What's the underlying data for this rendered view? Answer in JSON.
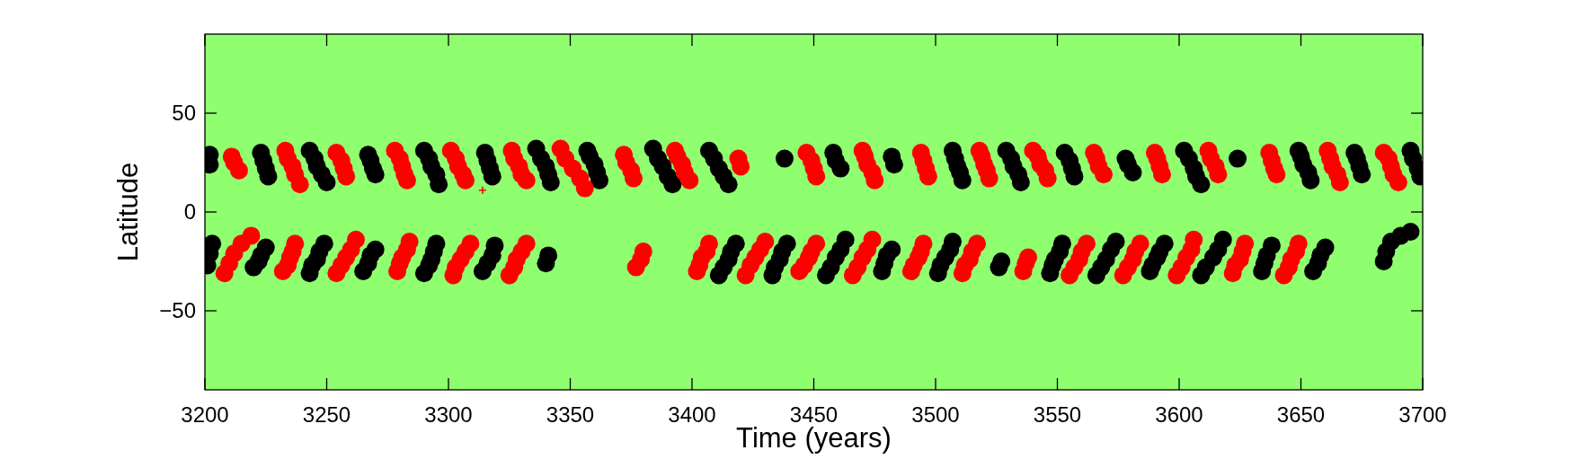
{
  "chart_data": {
    "type": "scatter",
    "xlabel": "Time (years)",
    "ylabel": "Latitude",
    "xlim": [
      3200,
      3700
    ],
    "ylim": [
      -90,
      90
    ],
    "xticks": [
      3200,
      3250,
      3300,
      3350,
      3400,
      3450,
      3500,
      3550,
      3600,
      3650,
      3700
    ],
    "yticks": [
      {
        "value": -50,
        "label": "−50"
      },
      0,
      50
    ],
    "marker": "circle",
    "series": [
      {
        "color": "#000000",
        "x": [
          3202,
          3202,
          3223,
          3224,
          3225,
          3226,
          3243,
          3245,
          3246,
          3248,
          3250,
          3267,
          3268,
          3269,
          3270,
          3290,
          3292,
          3293,
          3295,
          3296,
          3315,
          3316,
          3317,
          3318,
          3336,
          3338,
          3340,
          3341,
          3342,
          3357,
          3358,
          3360,
          3361,
          3362,
          3384,
          3386,
          3388,
          3390,
          3392,
          3407,
          3409,
          3411,
          3413,
          3415,
          3438,
          3458,
          3459,
          3461,
          3482,
          3483,
          3507,
          3508,
          3509,
          3510,
          3511,
          3529,
          3531,
          3532,
          3534,
          3535,
          3553,
          3555,
          3556,
          3557,
          3578,
          3579,
          3581,
          3602,
          3604,
          3606,
          3607,
          3609,
          3624,
          3649,
          3650,
          3651,
          3653,
          3654,
          3672,
          3673,
          3674,
          3675,
          3695,
          3696,
          3698,
          3699,
          3201,
          3202,
          3203,
          3220,
          3222,
          3223,
          3225,
          3243,
          3244,
          3246,
          3247,
          3249,
          3265,
          3267,
          3268,
          3270,
          3290,
          3292,
          3293,
          3294,
          3295,
          3314,
          3316,
          3318,
          3319,
          3340,
          3341,
          3411,
          3413,
          3415,
          3416,
          3418,
          3433,
          3434,
          3436,
          3437,
          3439,
          3455,
          3457,
          3459,
          3461,
          3463,
          3478,
          3479,
          3480,
          3482,
          3501,
          3502,
          3504,
          3506,
          3507,
          3526,
          3527,
          3547,
          3548,
          3549,
          3551,
          3552,
          3566,
          3568,
          3570,
          3572,
          3574,
          3588,
          3589,
          3591,
          3592,
          3594,
          3609,
          3611,
          3614,
          3616,
          3618,
          3634,
          3635,
          3636,
          3638,
          3655,
          3657,
          3658,
          3660,
          3684,
          3685,
          3687,
          3691,
          3695
        ],
        "values": [
          29,
          24,
          30,
          26,
          22,
          18,
          31,
          27,
          23,
          19,
          15,
          29,
          26,
          22,
          19,
          31,
          27,
          23,
          19,
          14,
          30,
          26,
          22,
          18,
          32,
          27,
          23,
          19,
          15,
          31,
          28,
          24,
          20,
          16,
          32,
          27,
          23,
          18,
          14,
          31,
          27,
          22,
          18,
          14,
          27,
          30,
          26,
          22,
          28,
          24,
          31,
          27,
          23,
          20,
          16,
          31,
          27,
          23,
          19,
          15,
          30,
          26,
          22,
          18,
          27,
          24,
          20,
          31,
          27,
          22,
          18,
          14,
          27,
          31,
          28,
          24,
          20,
          16,
          30,
          27,
          23,
          19,
          31,
          27,
          22,
          18,
          -27,
          -21,
          -16,
          -28,
          -25,
          -22,
          -18,
          -31,
          -27,
          -24,
          -20,
          -16,
          -30,
          -26,
          -22,
          -19,
          -31,
          -27,
          -24,
          -20,
          -16,
          -30,
          -26,
          -22,
          -17,
          -26,
          -22,
          -32,
          -28,
          -24,
          -20,
          -16,
          -32,
          -28,
          -24,
          -20,
          -16,
          -32,
          -28,
          -23,
          -19,
          -14,
          -30,
          -26,
          -22,
          -19,
          -31,
          -27,
          -23,
          -19,
          -15,
          -28,
          -25,
          -31,
          -27,
          -24,
          -20,
          -16,
          -32,
          -28,
          -24,
          -19,
          -15,
          -30,
          -27,
          -23,
          -20,
          -16,
          -32,
          -28,
          -23,
          -19,
          -14,
          -30,
          -26,
          -22,
          -17,
          -30,
          -26,
          -22,
          -18,
          -25,
          -20,
          -15,
          -12,
          -10
        ]
      },
      {
        "color": "#ff0000",
        "x": [
          3211,
          3212,
          3214,
          3233,
          3234,
          3236,
          3237,
          3239,
          3254,
          3256,
          3257,
          3258,
          3278,
          3280,
          3281,
          3282,
          3283,
          3301,
          3303,
          3304,
          3306,
          3307,
          3326,
          3327,
          3329,
          3330,
          3332,
          3346,
          3348,
          3351,
          3354,
          3356,
          3372,
          3373,
          3375,
          3376,
          3393,
          3394,
          3396,
          3397,
          3399,
          3419,
          3420,
          3447,
          3449,
          3450,
          3451,
          3470,
          3471,
          3472,
          3474,
          3475,
          3494,
          3495,
          3496,
          3497,
          3518,
          3519,
          3520,
          3521,
          3522,
          3540,
          3542,
          3543,
          3545,
          3546,
          3565,
          3566,
          3567,
          3569,
          3590,
          3591,
          3592,
          3593,
          3612,
          3613,
          3615,
          3616,
          3637,
          3638,
          3639,
          3640,
          3661,
          3662,
          3663,
          3665,
          3666,
          3684,
          3686,
          3687,
          3688,
          3690,
          3208,
          3210,
          3212,
          3215,
          3219,
          3232,
          3234,
          3235,
          3236,
          3237,
          3254,
          3256,
          3258,
          3260,
          3262,
          3279,
          3280,
          3281,
          3283,
          3284,
          3302,
          3303,
          3305,
          3307,
          3309,
          3325,
          3327,
          3328,
          3330,
          3332,
          3377,
          3379,
          3380,
          3402,
          3403,
          3404,
          3406,
          3407,
          3422,
          3424,
          3426,
          3428,
          3430,
          3444,
          3446,
          3448,
          3449,
          3451,
          3466,
          3468,
          3470,
          3472,
          3474,
          3490,
          3491,
          3493,
          3494,
          3495,
          3511,
          3512,
          3514,
          3515,
          3517,
          3536,
          3537,
          3538,
          3555,
          3557,
          3559,
          3560,
          3562,
          3577,
          3579,
          3581,
          3582,
          3584,
          3599,
          3601,
          3603,
          3605,
          3606,
          3622,
          3623,
          3625,
          3626,
          3627,
          3643,
          3645,
          3646,
          3648,
          3649
        ],
        "values": [
          28,
          25,
          21,
          31,
          27,
          23,
          19,
          14,
          30,
          26,
          22,
          18,
          31,
          27,
          23,
          19,
          16,
          31,
          27,
          23,
          19,
          16,
          31,
          27,
          23,
          19,
          16,
          32,
          27,
          22,
          17,
          12,
          29,
          25,
          21,
          17,
          31,
          28,
          24,
          20,
          16,
          27,
          23,
          30,
          26,
          22,
          18,
          31,
          28,
          24,
          20,
          16,
          30,
          26,
          22,
          18,
          31,
          28,
          24,
          21,
          17,
          31,
          28,
          24,
          21,
          17,
          30,
          27,
          23,
          19,
          30,
          27,
          23,
          19,
          31,
          27,
          23,
          19,
          30,
          26,
          22,
          19,
          31,
          27,
          23,
          19,
          15,
          30,
          27,
          23,
          19,
          15,
          -31,
          -26,
          -21,
          -16,
          -12,
          -30,
          -27,
          -23,
          -20,
          -16,
          -31,
          -27,
          -23,
          -19,
          -14,
          -30,
          -26,
          -23,
          -19,
          -15,
          -32,
          -28,
          -24,
          -20,
          -16,
          -32,
          -28,
          -24,
          -20,
          -16,
          -28,
          -24,
          -20,
          -30,
          -27,
          -23,
          -20,
          -16,
          -32,
          -27,
          -23,
          -19,
          -15,
          -30,
          -27,
          -23,
          -20,
          -16,
          -32,
          -28,
          -23,
          -19,
          -14,
          -30,
          -27,
          -23,
          -20,
          -16,
          -31,
          -27,
          -24,
          -20,
          -16,
          -30,
          -26,
          -23,
          -32,
          -28,
          -24,
          -20,
          -16,
          -32,
          -28,
          -24,
          -20,
          -16,
          -32,
          -28,
          -23,
          -19,
          -14,
          -31,
          -27,
          -24,
          -20,
          -16,
          -32,
          -28,
          -24,
          -20,
          -16
        ]
      },
      {
        "color": "#ff0000",
        "marker": "cross",
        "x": [
          3314
        ],
        "values": [
          11
        ]
      }
    ]
  }
}
